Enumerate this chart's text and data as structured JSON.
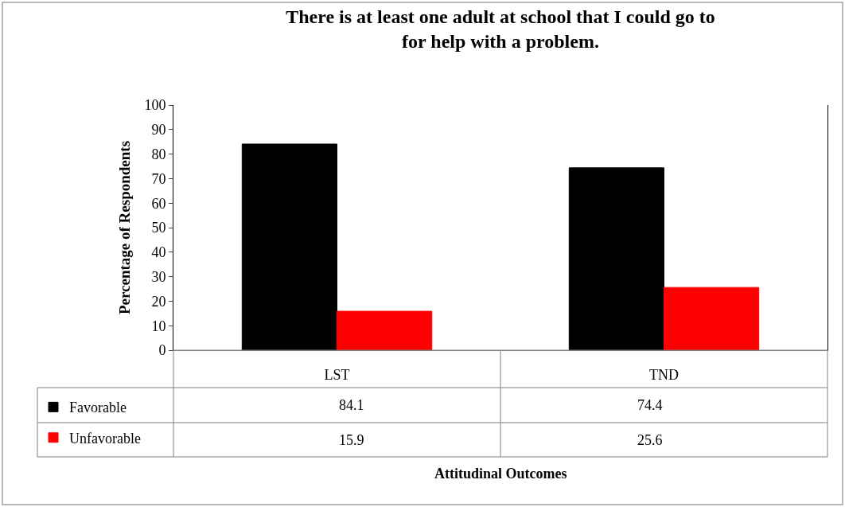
{
  "chart_data": {
    "type": "bar",
    "title": "There is at least one adult at school that I could go to\nfor help with a problem.",
    "annotations": [
      "Attitudinal Outcomes"
    ],
    "ylabel": "Percentage of Respondents",
    "categories": [
      "LST",
      "TND"
    ],
    "series": [
      {
        "name": "Favorable",
        "color": "#000000",
        "values": [
          84.1,
          74.4
        ]
      },
      {
        "name": "Unfavorable",
        "color": "#ff0000",
        "values": [
          15.9,
          25.6
        ]
      }
    ],
    "ylim": [
      0,
      100
    ],
    "yticks": [
      0,
      10,
      20,
      30,
      40,
      50,
      60,
      70,
      80,
      90,
      100
    ],
    "legend": "bottom",
    "data_labels": true
  }
}
